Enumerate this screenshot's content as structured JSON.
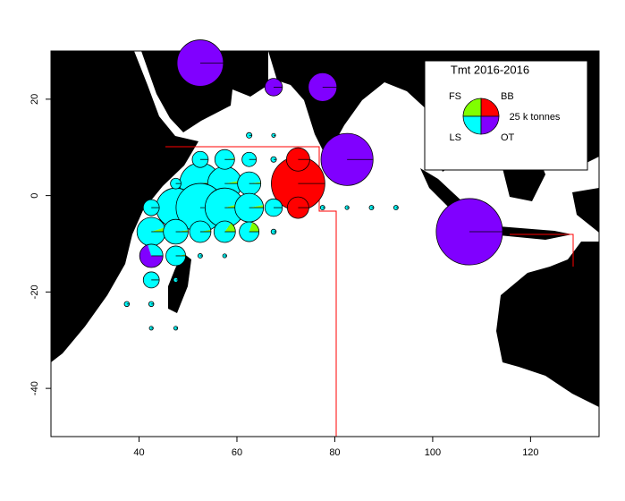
{
  "chart_data": {
    "type": "pie-map",
    "title": "Tmt 2016-2016",
    "legend_size_label": "25 k tonnes",
    "legend_size": 25,
    "gears": [
      {
        "name": "BB",
        "color": "#ff0000"
      },
      {
        "name": "FS",
        "color": "#80ff00"
      },
      {
        "name": "LS",
        "color": "#00ffff"
      },
      {
        "name": "OT",
        "color": "#8000ff"
      }
    ],
    "xlim": [
      22,
      134
    ],
    "ylim": [
      -50,
      30
    ],
    "xticks": [
      40,
      60,
      80,
      100,
      120
    ],
    "yticks": [
      -40,
      -20,
      0,
      20
    ],
    "pies": [
      {
        "lon": 52.5,
        "lat": 27.5,
        "catch": 42,
        "shares": [
          0,
          0,
          0,
          100
        ]
      },
      {
        "lon": 67.5,
        "lat": 22.5,
        "catch": 6,
        "shares": [
          0,
          0,
          0,
          100
        ]
      },
      {
        "lon": 77.5,
        "lat": 22.5,
        "catch": 16,
        "shares": [
          0,
          0,
          0,
          100
        ]
      },
      {
        "lon": 82.5,
        "lat": 7.5,
        "catch": 53,
        "shares": [
          0,
          0,
          0,
          100
        ]
      },
      {
        "lon": 72.5,
        "lat": 2.5,
        "catch": 56,
        "shares": [
          100,
          0,
          0,
          0
        ]
      },
      {
        "lon": 72.5,
        "lat": 7.5,
        "catch": 10.6,
        "shares": [
          100,
          0,
          0,
          0
        ]
      },
      {
        "lon": 72.5,
        "lat": -2.5,
        "catch": 9,
        "shares": [
          100,
          0,
          0,
          0
        ]
      },
      {
        "lon": 107.5,
        "lat": -7.5,
        "catch": 86,
        "shares": [
          0,
          0,
          0,
          100
        ]
      },
      {
        "lon": 52.5,
        "lat": 2.5,
        "catch": 33,
        "shares": [
          0,
          2,
          98,
          0
        ]
      },
      {
        "lon": 57.5,
        "lat": 2.5,
        "catch": 22.6,
        "shares": [
          0,
          3,
          97,
          0
        ]
      },
      {
        "lon": 62.5,
        "lat": 2.5,
        "catch": 10.6,
        "shares": [
          0,
          2,
          98,
          0
        ]
      },
      {
        "lon": 47.5,
        "lat": -2.5,
        "catch": 30,
        "shares": [
          0,
          1,
          99,
          0
        ]
      },
      {
        "lon": 52.5,
        "lat": -2.5,
        "catch": 45.6,
        "shares": [
          0,
          1,
          99,
          0
        ]
      },
      {
        "lon": 57.5,
        "lat": -2.5,
        "catch": 30,
        "shares": [
          0,
          4,
          96,
          0
        ]
      },
      {
        "lon": 62.5,
        "lat": -2.5,
        "catch": 16,
        "shares": [
          0,
          3,
          97,
          0
        ]
      },
      {
        "lon": 67.5,
        "lat": -2.5,
        "catch": 6,
        "shares": [
          0,
          0,
          100,
          0
        ]
      },
      {
        "lon": 42.5,
        "lat": -7.5,
        "catch": 16,
        "shares": [
          0,
          5,
          95,
          0
        ]
      },
      {
        "lon": 47.5,
        "lat": -7.5,
        "catch": 12,
        "shares": [
          0,
          2,
          98,
          0
        ]
      },
      {
        "lon": 52.5,
        "lat": -7.5,
        "catch": 9,
        "shares": [
          0,
          3,
          97,
          0
        ]
      },
      {
        "lon": 57.5,
        "lat": -7.5,
        "catch": 9,
        "shares": [
          0,
          15,
          85,
          0
        ]
      },
      {
        "lon": 62.5,
        "lat": -7.5,
        "catch": 7.6,
        "shares": [
          0,
          20,
          80,
          0
        ]
      },
      {
        "lon": 52.5,
        "lat": 7.5,
        "catch": 5,
        "shares": [
          0,
          0,
          100,
          0
        ]
      },
      {
        "lon": 57.5,
        "lat": 7.5,
        "catch": 7.6,
        "shares": [
          0,
          2,
          98,
          0
        ]
      },
      {
        "lon": 62.5,
        "lat": 7.5,
        "catch": 4,
        "shares": [
          0,
          0,
          100,
          0
        ]
      },
      {
        "lon": 42.5,
        "lat": -12.5,
        "catch": 10.6,
        "shares": [
          0,
          0,
          30,
          70
        ]
      },
      {
        "lon": 47.5,
        "lat": -12.5,
        "catch": 7.6,
        "shares": [
          0,
          2,
          98,
          0
        ]
      },
      {
        "lon": 42.5,
        "lat": -17.5,
        "catch": 5,
        "shares": [
          0,
          0,
          100,
          0
        ]
      },
      {
        "lon": 42.5,
        "lat": -2.5,
        "catch": 5,
        "shares": [
          0,
          0,
          100,
          0
        ]
      },
      {
        "lon": 47.5,
        "lat": 2.5,
        "catch": 2.2,
        "shares": [
          0,
          0,
          100,
          0
        ]
      },
      {
        "lon": 67.5,
        "lat": 7.5,
        "catch": 0.6,
        "shares": [
          0,
          0,
          100,
          0
        ]
      },
      {
        "lon": 62.5,
        "lat": 12.5,
        "catch": 0.6,
        "shares": [
          0,
          0,
          100,
          0
        ]
      },
      {
        "lon": 67.5,
        "lat": 12.5,
        "catch": 0.3,
        "shares": [
          0,
          0,
          100,
          0
        ]
      },
      {
        "lon": 67.5,
        "lat": -7.5,
        "catch": 0.5,
        "shares": [
          0,
          0,
          100,
          0
        ]
      },
      {
        "lon": 77.5,
        "lat": -2.5,
        "catch": 0.4,
        "shares": [
          0,
          0,
          100,
          0
        ]
      },
      {
        "lon": 82.5,
        "lat": -2.5,
        "catch": 0.3,
        "shares": [
          0,
          0,
          100,
          0
        ]
      },
      {
        "lon": 87.5,
        "lat": -2.5,
        "catch": 0.4,
        "shares": [
          0,
          0,
          100,
          0
        ]
      },
      {
        "lon": 92.5,
        "lat": -2.5,
        "catch": 0.4,
        "shares": [
          0,
          0,
          100,
          0
        ]
      },
      {
        "lon": 47.5,
        "lat": -17.5,
        "catch": 0.4,
        "shares": [
          0,
          0,
          100,
          0
        ]
      },
      {
        "lon": 52.5,
        "lat": -12.5,
        "catch": 0.4,
        "shares": [
          0,
          0,
          100,
          0
        ]
      },
      {
        "lon": 57.5,
        "lat": -12.5,
        "catch": 0.3,
        "shares": [
          0,
          0,
          100,
          0
        ]
      },
      {
        "lon": 37.5,
        "lat": -22.5,
        "catch": 0.5,
        "shares": [
          0,
          0,
          100,
          0
        ]
      },
      {
        "lon": 42.5,
        "lat": -22.5,
        "catch": 0.5,
        "shares": [
          0,
          0,
          100,
          0
        ]
      },
      {
        "lon": 47.5,
        "lat": -27.5,
        "catch": 0.3,
        "shares": [
          0,
          0,
          100,
          0
        ]
      },
      {
        "lon": 42.5,
        "lat": -27.5,
        "catch": 0.3,
        "shares": [
          0,
          0,
          100,
          0
        ]
      }
    ]
  }
}
